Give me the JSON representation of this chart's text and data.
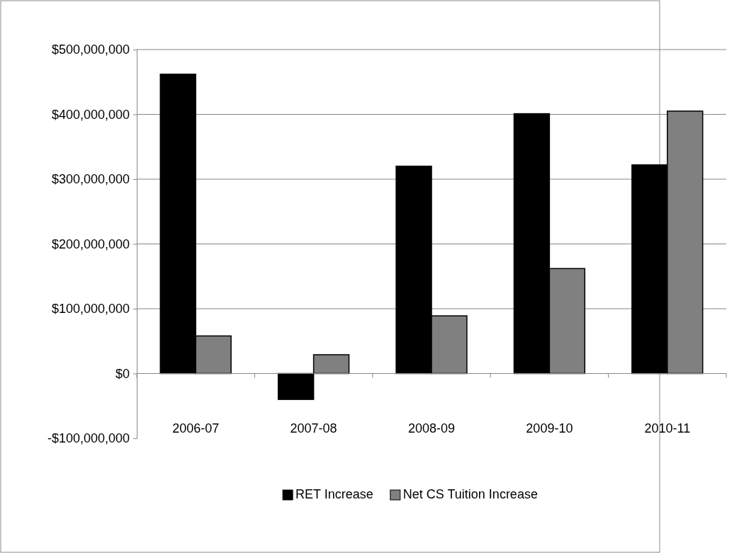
{
  "chart_data": {
    "type": "bar",
    "categories": [
      "2006-07",
      "2007-08",
      "2008-09",
      "2009-10",
      "2010-11"
    ],
    "series": [
      {
        "name": "RET Increase",
        "color": "#000000",
        "values": [
          462000000,
          -40000000,
          320000000,
          401000000,
          322000000
        ]
      },
      {
        "name": "Net CS Tuition Increase",
        "color": "#808080",
        "values": [
          58000000,
          29000000,
          89000000,
          162000000,
          405000000
        ]
      }
    ],
    "ylim": [
      -100000000,
      500000000
    ],
    "yticks": [
      {
        "value": -100000000,
        "label": "-$100,000,000"
      },
      {
        "value": 0,
        "label": "$0"
      },
      {
        "value": 100000000,
        "label": "$100,000,000"
      },
      {
        "value": 200000000,
        "label": "$200,000,000"
      },
      {
        "value": 300000000,
        "label": "$300,000,000"
      },
      {
        "value": 400000000,
        "label": "$400,000,000"
      },
      {
        "value": 500000000,
        "label": "$500,000,000"
      }
    ],
    "grid": "y",
    "legend": "bottom"
  }
}
